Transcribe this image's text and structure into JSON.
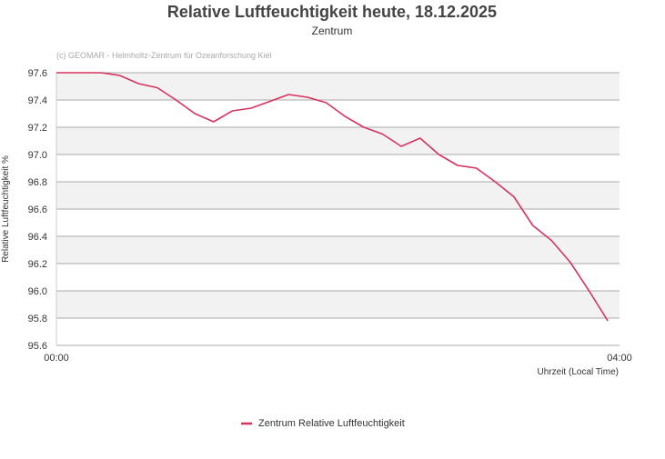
{
  "chart_data": {
    "type": "line",
    "title": "Relative Luftfeuchtigkeit heute, 18.12.2025",
    "subtitle": "Zentrum",
    "credit": "(c) GEOMAR - Helmholtz-Zentrum für Ozeanforschung Kiel",
    "xlabel": "Uhrzeit (Local Time)",
    "ylabel": "Relative Luftfeuchtigkeit %",
    "xlim": [
      "00:00",
      "04:00"
    ],
    "ylim": [
      95.6,
      97.6
    ],
    "x_ticks": [
      "00:00",
      "04:00"
    ],
    "y_ticks": [
      "95.6",
      "95.8",
      "96.0",
      "96.2",
      "96.4",
      "96.6",
      "96.8",
      "97.0",
      "97.2",
      "97.4",
      "97.6"
    ],
    "grid": true,
    "alternating_bands": true,
    "legend_position": "bottom",
    "series": [
      {
        "name": "Zentrum Relative Luftfeuchtigkeit",
        "color": "#d6335f",
        "x": [
          "00:00",
          "00:19",
          "00:27",
          "00:35",
          "00:43",
          "00:51",
          "00:59",
          "01:07",
          "01:15",
          "01:23",
          "01:31",
          "01:39",
          "01:47",
          "01:55",
          "02:03",
          "02:11",
          "02:19",
          "02:27",
          "02:35",
          "02:43",
          "02:51",
          "02:59",
          "03:07",
          "03:15",
          "03:23",
          "03:31",
          "03:39",
          "03:47",
          "03:55"
        ],
        "values": [
          97.6,
          97.6,
          97.58,
          97.52,
          97.49,
          97.4,
          97.3,
          97.24,
          97.32,
          97.34,
          97.39,
          97.44,
          97.42,
          97.38,
          97.28,
          97.2,
          97.15,
          97.06,
          97.12,
          97.0,
          96.92,
          96.9,
          96.8,
          96.69,
          96.48,
          96.37,
          96.21,
          96.0,
          95.78
        ]
      }
    ]
  }
}
